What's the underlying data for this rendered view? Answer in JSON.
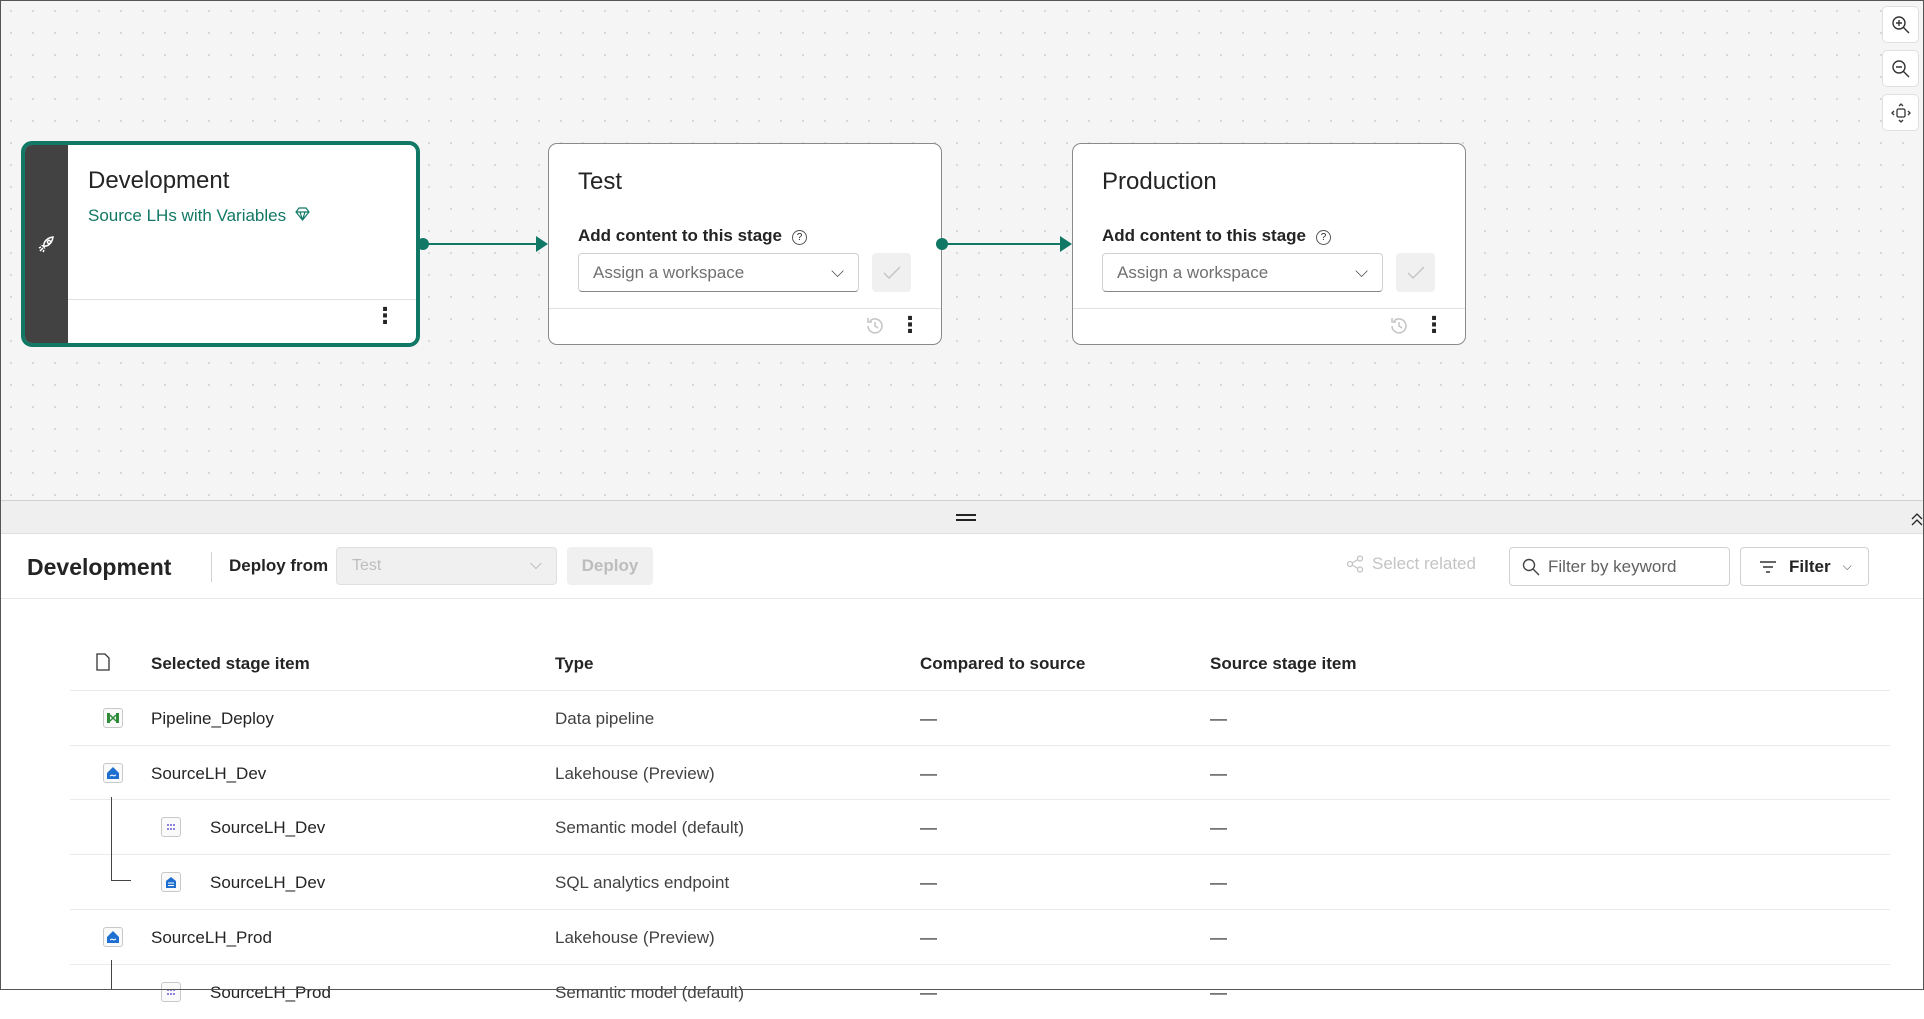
{
  "canvas": {
    "zoom_controls": [
      {
        "icon": "zoom-in-icon"
      },
      {
        "icon": "zoom-out-icon"
      },
      {
        "icon": "fit-to-screen-icon"
      }
    ],
    "stages": [
      {
        "title": "Development",
        "workspace": "Source LHs with Variables",
        "workspace_icon": "premium-diamond-icon",
        "strip_icon": "rocket-icon",
        "selected": true
      },
      {
        "title": "Test",
        "add_label": "Add content to this stage",
        "placeholder": "Assign a workspace"
      },
      {
        "title": "Production",
        "add_label": "Add content to this stage",
        "placeholder": "Assign a workspace"
      }
    ],
    "accent": "#117865"
  },
  "toolbar": {
    "title": "Development",
    "deploy_from_label": "Deploy from",
    "deploy_from_value": "Test",
    "deploy_label": "Deploy",
    "select_related_label": "Select related",
    "filter_placeholder": "Filter by keyword",
    "filter_label": "Filter"
  },
  "table": {
    "headers": [
      "Selected stage item",
      "Type",
      "Compared to source",
      "Source stage item"
    ],
    "rows": [
      {
        "name": "Pipeline_Deploy",
        "type": "Data pipeline",
        "compared": "—",
        "source": "—",
        "icon": "data-pipeline-icon",
        "child": false
      },
      {
        "name": "SourceLH_Dev",
        "type": "Lakehouse (Preview)",
        "compared": "—",
        "source": "—",
        "icon": "lakehouse-icon",
        "child": false
      },
      {
        "name": "SourceLH_Dev",
        "type": "Semantic model (default)",
        "compared": "—",
        "source": "—",
        "icon": "semantic-model-icon",
        "child": true
      },
      {
        "name": "SourceLH_Dev",
        "type": "SQL analytics endpoint",
        "compared": "—",
        "source": "—",
        "icon": "sql-endpoint-icon",
        "child": true
      },
      {
        "name": "SourceLH_Prod",
        "type": "Lakehouse (Preview)",
        "compared": "—",
        "source": "—",
        "icon": "lakehouse-icon",
        "child": false
      },
      {
        "name": "SourceLH_Prod",
        "type": "Semantic model (default)",
        "compared": "—",
        "source": "—",
        "icon": "semantic-model-icon",
        "child": true
      }
    ]
  }
}
